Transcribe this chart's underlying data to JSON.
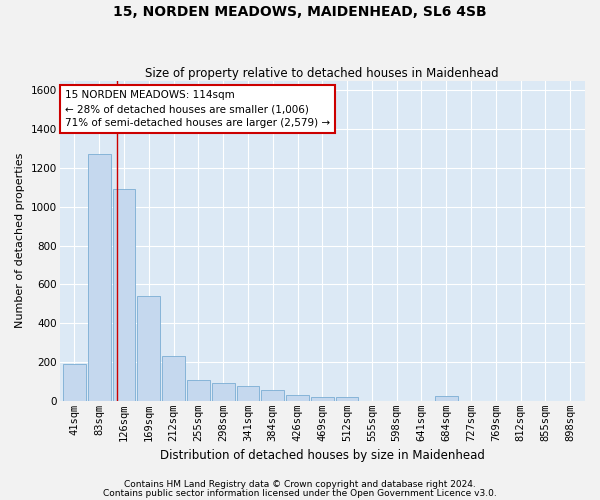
{
  "title": "15, NORDEN MEADOWS, MAIDENHEAD, SL6 4SB",
  "subtitle": "Size of property relative to detached houses in Maidenhead",
  "xlabel": "Distribution of detached houses by size in Maidenhead",
  "ylabel": "Number of detached properties",
  "footnote1": "Contains HM Land Registry data © Crown copyright and database right 2024.",
  "footnote2": "Contains public sector information licensed under the Open Government Licence v3.0.",
  "bar_labels": [
    "41sqm",
    "83sqm",
    "126sqm",
    "169sqm",
    "212sqm",
    "255sqm",
    "298sqm",
    "341sqm",
    "384sqm",
    "426sqm",
    "469sqm",
    "512sqm",
    "555sqm",
    "598sqm",
    "641sqm",
    "684sqm",
    "727sqm",
    "769sqm",
    "812sqm",
    "855sqm",
    "898sqm"
  ],
  "bar_values": [
    190,
    1270,
    1090,
    540,
    230,
    110,
    90,
    75,
    55,
    30,
    20,
    18,
    0,
    0,
    0,
    25,
    0,
    0,
    0,
    0,
    0
  ],
  "bar_color": "#c5d8ee",
  "bar_edge_color": "#7badd4",
  "plot_bg_color": "#dce9f5",
  "fig_bg_color": "#f2f2f2",
  "grid_color": "#ffffff",
  "vline_x": 1.72,
  "vline_color": "#cc0000",
  "annotation_text": "15 NORDEN MEADOWS: 114sqm\n← 28% of detached houses are smaller (1,006)\n71% of semi-detached houses are larger (2,579) →",
  "annotation_box_edgecolor": "#cc0000",
  "ylim": [
    0,
    1650
  ],
  "yticks": [
    0,
    200,
    400,
    600,
    800,
    1000,
    1200,
    1400,
    1600
  ],
  "title_fontsize": 10,
  "subtitle_fontsize": 8.5,
  "xlabel_fontsize": 8.5,
  "ylabel_fontsize": 8,
  "tick_fontsize": 7.5,
  "annotation_fontsize": 7.5,
  "footnote_fontsize": 6.5
}
